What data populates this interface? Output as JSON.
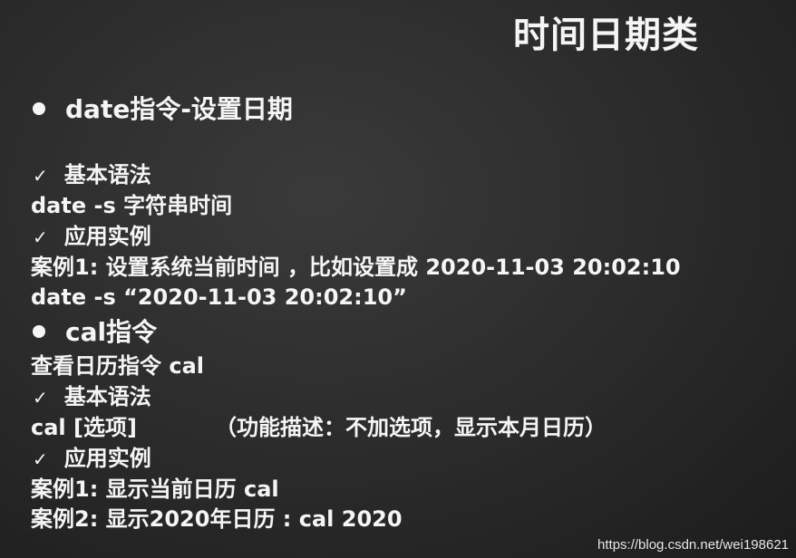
{
  "slide": {
    "title": "时间日期类",
    "section_date": {
      "heading": "date指令-设置日期",
      "syntax_label": "基本语法",
      "syntax_cmd": "date  -s  字符串时间",
      "example_label": "应用实例",
      "example_desc": "案例1: 设置系统当前时间 ，比如设置成 2020-11-03 20:02:10",
      "example_cmd": "date -s “2020-11-03 20:02:10”"
    },
    "section_cal": {
      "heading": "cal指令",
      "desc": "查看日历指令 cal",
      "syntax_label": "基本语法",
      "syntax_cmd": "cal [选项]",
      "syntax_note": "（功能描述：不加选项，显示本月日历）",
      "example_label": "应用实例",
      "example1": "案例1: 显示当前日历 cal",
      "example2": "案例2: 显示2020年日历 : cal 2020"
    },
    "watermark": "https://blog.csdn.net/wei198621"
  },
  "icons": {
    "bullet": "filled-circle-bullet-icon",
    "check": "checkmark-icon"
  },
  "colors": {
    "background": "#2a2a2a",
    "text": "#f5f5f5"
  }
}
